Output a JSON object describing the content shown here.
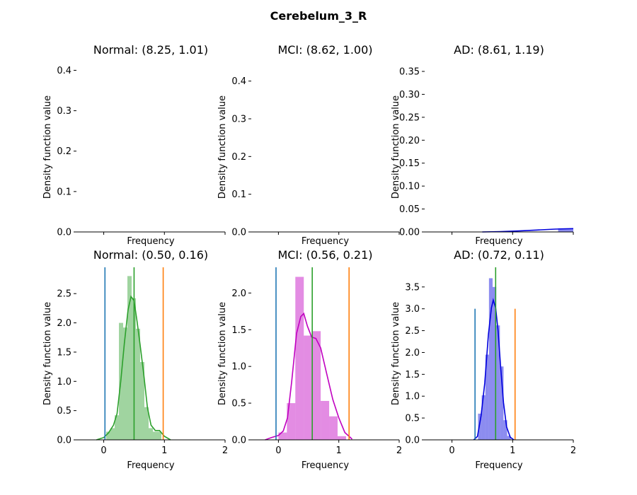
{
  "figure": {
    "suptitle": "Cerebelum_3_R"
  },
  "chart_data": [
    {
      "type": "histogram-kde",
      "title": "Normal: (8.25, 1.01)",
      "xlabel": "Frequency",
      "ylabel": "Density function value",
      "xlim": [
        -0.45,
        2.0
      ],
      "ylim": [
        0,
        0.42
      ],
      "yticks": [
        "0.0",
        "0.1",
        "0.2",
        "0.3",
        "0.4"
      ],
      "show_x_ticklabels": false,
      "color": "#2ca02c",
      "bars": [],
      "kde": [],
      "vlines": []
    },
    {
      "type": "histogram-kde",
      "title": "MCI: (8.62, 1.00)",
      "xlabel": "Frequency",
      "ylabel": "Density function value",
      "xlim": [
        -0.45,
        2.0
      ],
      "ylim": [
        0,
        0.45
      ],
      "yticks": [
        "0.0",
        "0.1",
        "0.2",
        "0.3",
        "0.4"
      ],
      "show_x_ticklabels": false,
      "color": "#c000c0",
      "bars": [],
      "kde": [],
      "vlines": []
    },
    {
      "type": "histogram-kde",
      "title": "AD: (8.61, 1.19)",
      "xlabel": "Frequency",
      "ylabel": "Density function value",
      "xlim": [
        -0.45,
        2.0
      ],
      "ylim": [
        0,
        0.37
      ],
      "yticks": [
        "0.00",
        "0.05",
        "0.10",
        "0.15",
        "0.20",
        "0.25",
        "0.30",
        "0.35"
      ],
      "show_x_ticklabels": false,
      "color": "#0000dd",
      "bars": [
        {
          "x0": 1.75,
          "x1": 2.0,
          "y": 0.008
        }
      ],
      "kde": [
        [
          0.5,
          0.0
        ],
        [
          0.8,
          0.0008
        ],
        [
          1.1,
          0.0022
        ],
        [
          1.4,
          0.0042
        ],
        [
          1.7,
          0.0062
        ],
        [
          2.0,
          0.0072
        ]
      ],
      "vlines": []
    },
    {
      "type": "histogram-kde",
      "title": "Normal: (0.50, 0.16)",
      "xlabel": "Frequency",
      "ylabel": "Density function value",
      "xlim": [
        -0.45,
        2.0
      ],
      "ylim": [
        0,
        2.95
      ],
      "yticks": [
        "0.0",
        "0.5",
        "1.0",
        "1.5",
        "2.0",
        "2.5"
      ],
      "show_x_ticklabels": true,
      "xticks": [
        "0",
        "1",
        "2"
      ],
      "color": "#2ca02c",
      "bars": [
        {
          "x0": 0.04,
          "x1": 0.11,
          "y": 0.14
        },
        {
          "x0": 0.11,
          "x1": 0.18,
          "y": 0.2
        },
        {
          "x0": 0.18,
          "x1": 0.25,
          "y": 0.42
        },
        {
          "x0": 0.25,
          "x1": 0.32,
          "y": 2.0
        },
        {
          "x0": 0.32,
          "x1": 0.39,
          "y": 1.92
        },
        {
          "x0": 0.39,
          "x1": 0.46,
          "y": 2.8
        },
        {
          "x0": 0.46,
          "x1": 0.53,
          "y": 2.42
        },
        {
          "x0": 0.53,
          "x1": 0.6,
          "y": 1.9
        },
        {
          "x0": 0.6,
          "x1": 0.67,
          "y": 1.33
        },
        {
          "x0": 0.67,
          "x1": 0.74,
          "y": 0.56
        },
        {
          "x0": 0.74,
          "x1": 0.81,
          "y": 0.2
        },
        {
          "x0": 0.81,
          "x1": 0.88,
          "y": 0.14
        },
        {
          "x0": 0.88,
          "x1": 0.95,
          "y": 0.14
        }
      ],
      "kde": [
        [
          -0.12,
          0.0
        ],
        [
          0.0,
          0.04
        ],
        [
          0.08,
          0.12
        ],
        [
          0.16,
          0.25
        ],
        [
          0.22,
          0.45
        ],
        [
          0.28,
          1.0
        ],
        [
          0.34,
          1.65
        ],
        [
          0.4,
          2.22
        ],
        [
          0.45,
          2.45
        ],
        [
          0.5,
          2.38
        ],
        [
          0.55,
          2.02
        ],
        [
          0.6,
          1.62
        ],
        [
          0.66,
          1.12
        ],
        [
          0.72,
          0.55
        ],
        [
          0.78,
          0.25
        ],
        [
          0.85,
          0.16
        ],
        [
          0.92,
          0.16
        ],
        [
          1.0,
          0.06
        ],
        [
          1.1,
          0.0
        ]
      ],
      "vlines": [
        {
          "x": 0.02,
          "ymax": 2.95,
          "color": "#1f77b4"
        },
        {
          "x": 0.5,
          "ymax": 2.95,
          "color": "#2ca02c"
        },
        {
          "x": 0.98,
          "ymax": 2.95,
          "color": "#ff7f0e"
        }
      ]
    },
    {
      "type": "histogram-kde",
      "title": "MCI: (0.56, 0.21)",
      "xlabel": "Frequency",
      "ylabel": "Density function value",
      "xlim": [
        -0.45,
        2.0
      ],
      "ylim": [
        0,
        2.35
      ],
      "yticks": [
        "0.0",
        "0.5",
        "1.0",
        "1.5",
        "2.0"
      ],
      "show_x_ticklabels": true,
      "xticks": [
        "0",
        "1",
        "2"
      ],
      "color": "#c000c0",
      "bars": [
        {
          "x0": 0.0,
          "x1": 0.14,
          "y": 0.1
        },
        {
          "x0": 0.14,
          "x1": 0.28,
          "y": 0.5
        },
        {
          "x0": 0.28,
          "x1": 0.42,
          "y": 2.22
        },
        {
          "x0": 0.42,
          "x1": 0.56,
          "y": 1.42
        },
        {
          "x0": 0.56,
          "x1": 0.7,
          "y": 1.48
        },
        {
          "x0": 0.7,
          "x1": 0.84,
          "y": 0.53
        },
        {
          "x0": 0.84,
          "x1": 0.98,
          "y": 0.32
        },
        {
          "x0": 0.98,
          "x1": 1.12,
          "y": 0.05
        }
      ],
      "kde": [
        [
          -0.22,
          0.0
        ],
        [
          -0.12,
          0.03
        ],
        [
          0.0,
          0.06
        ],
        [
          0.08,
          0.12
        ],
        [
          0.15,
          0.3
        ],
        [
          0.22,
          0.8
        ],
        [
          0.3,
          1.45
        ],
        [
          0.37,
          1.68
        ],
        [
          0.42,
          1.72
        ],
        [
          0.48,
          1.55
        ],
        [
          0.55,
          1.4
        ],
        [
          0.62,
          1.38
        ],
        [
          0.7,
          1.25
        ],
        [
          0.8,
          0.9
        ],
        [
          0.9,
          0.55
        ],
        [
          1.0,
          0.3
        ],
        [
          1.1,
          0.1
        ],
        [
          1.22,
          0.01
        ]
      ],
      "vlines": [
        {
          "x": -0.04,
          "ymax": 2.35,
          "color": "#1f77b4"
        },
        {
          "x": 0.56,
          "ymax": 2.35,
          "color": "#2ca02c"
        },
        {
          "x": 1.17,
          "ymax": 2.35,
          "color": "#ff7f0e"
        }
      ]
    },
    {
      "type": "histogram-kde",
      "title": "AD: (0.72, 0.11)",
      "xlabel": "Frequency",
      "ylabel": "Density function value",
      "xlim": [
        -0.45,
        2.0
      ],
      "ylim": [
        0,
        3.95
      ],
      "yticks": [
        "0.0",
        "0.5",
        "1.0",
        "1.5",
        "2.0",
        "2.5",
        "3.0",
        "3.5"
      ],
      "show_x_ticklabels": true,
      "xticks": [
        "0",
        "1",
        "2"
      ],
      "color": "#0000dd",
      "bars": [
        {
          "x0": 0.43,
          "x1": 0.49,
          "y": 0.6
        },
        {
          "x0": 0.49,
          "x1": 0.55,
          "y": 1.02
        },
        {
          "x0": 0.55,
          "x1": 0.61,
          "y": 1.95
        },
        {
          "x0": 0.61,
          "x1": 0.67,
          "y": 3.7
        },
        {
          "x0": 0.67,
          "x1": 0.73,
          "y": 3.5
        },
        {
          "x0": 0.73,
          "x1": 0.79,
          "y": 2.62
        },
        {
          "x0": 0.79,
          "x1": 0.85,
          "y": 1.68
        },
        {
          "x0": 0.85,
          "x1": 0.91,
          "y": 0.45
        },
        {
          "x0": 0.91,
          "x1": 0.97,
          "y": 0.09
        }
      ],
      "kde": [
        [
          0.36,
          0.0
        ],
        [
          0.42,
          0.08
        ],
        [
          0.48,
          0.55
        ],
        [
          0.54,
          1.3
        ],
        [
          0.6,
          2.4
        ],
        [
          0.65,
          3.02
        ],
        [
          0.68,
          3.2
        ],
        [
          0.72,
          3.02
        ],
        [
          0.76,
          2.5
        ],
        [
          0.8,
          1.72
        ],
        [
          0.85,
          0.85
        ],
        [
          0.9,
          0.3
        ],
        [
          0.96,
          0.06
        ],
        [
          1.02,
          0.0
        ]
      ],
      "vlines": [
        {
          "x": 0.38,
          "ymax": 3.0,
          "color": "#1f77b4"
        },
        {
          "x": 0.72,
          "ymax": 3.95,
          "color": "#2ca02c"
        },
        {
          "x": 1.04,
          "ymax": 3.0,
          "color": "#ff7f0e"
        }
      ]
    }
  ]
}
